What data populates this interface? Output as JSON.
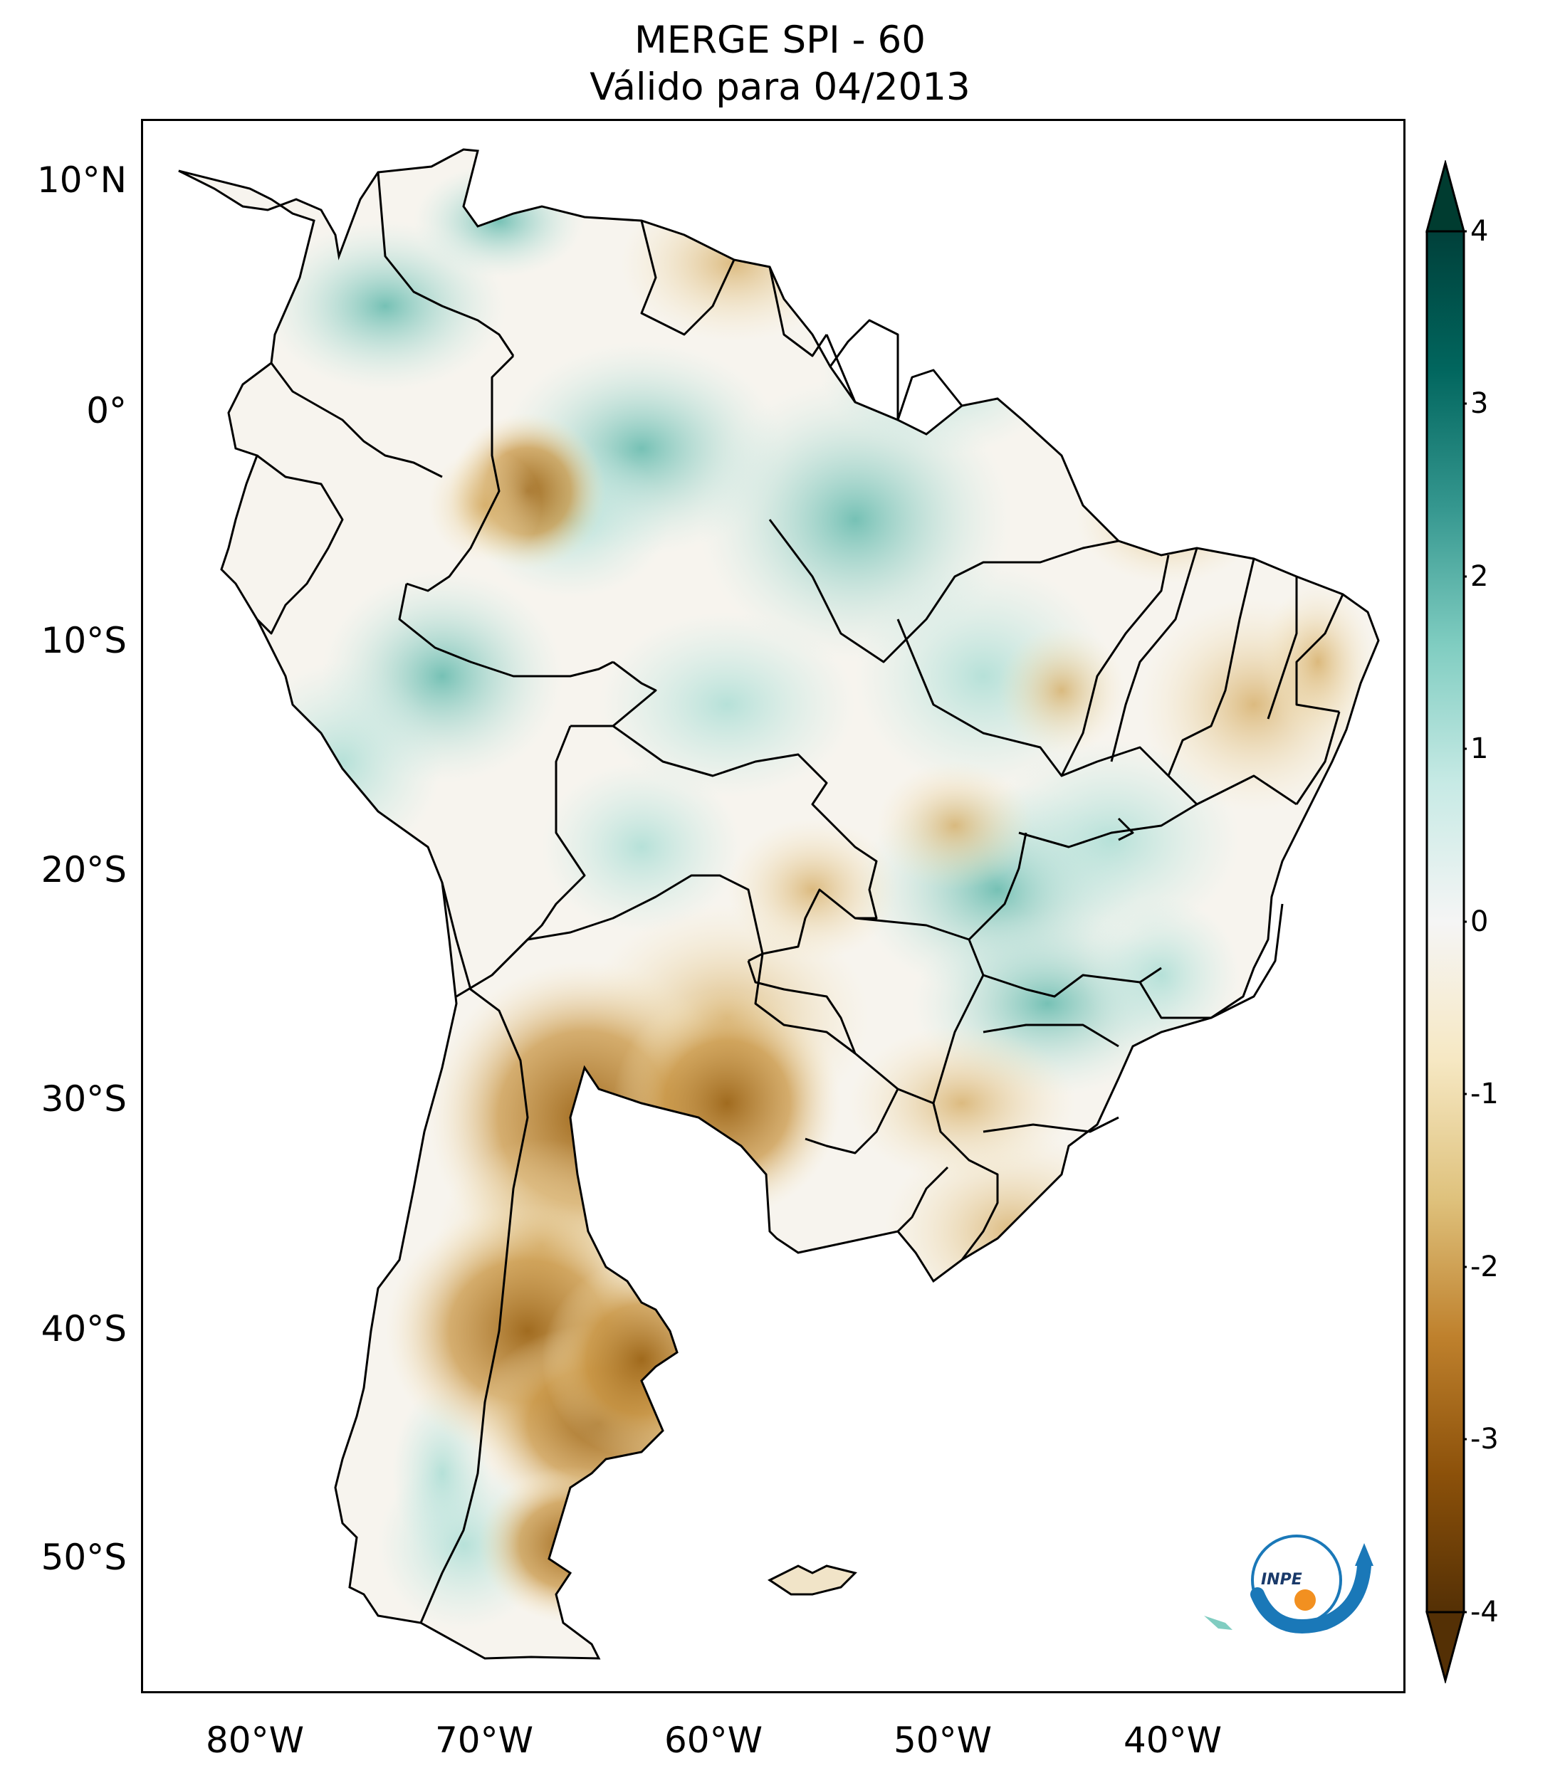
{
  "title": {
    "line1": "MERGE   SPI - 60",
    "line2": "Válido para 04/2013"
  },
  "axes": {
    "lat_ticks": [
      "10°N",
      "0°",
      "10°S",
      "20°S",
      "30°S",
      "40°S",
      "50°S"
    ],
    "lon_ticks": [
      "80°W",
      "70°W",
      "60°W",
      "50°W",
      "40°W"
    ]
  },
  "colorbar": {
    "ticks": [
      "4",
      "3",
      "2",
      "1",
      "0",
      "-1",
      "-2",
      "-3",
      "-4"
    ],
    "range": [
      -4,
      4
    ],
    "extend": "both",
    "colors": {
      "dry_extreme": "#543005",
      "dry_strong": "#8c510a",
      "dry_moderate": "#bf812d",
      "dry_mild": "#dfc27d",
      "dry_slight": "#f6e8c3",
      "neutral": "#f5f5f5",
      "wet_slight": "#c7eae5",
      "wet_mild": "#80cdc1",
      "wet_moderate": "#35978f",
      "wet_strong": "#01665e",
      "wet_extreme": "#003c30"
    }
  },
  "map": {
    "region": "South America",
    "lon_range": [
      -85,
      -30
    ],
    "lat_range": [
      -56,
      13
    ]
  },
  "logo": {
    "text": "INPE"
  }
}
